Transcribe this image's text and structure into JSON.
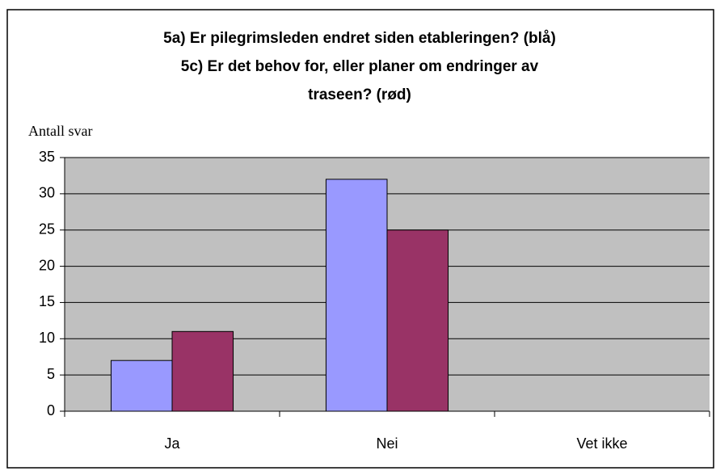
{
  "chart_data": {
    "type": "bar",
    "title": [
      "5a) Er pilegrimsleden endret siden etableringen? (blå)",
      "5c) Er det behov for, eller planer om endringer av",
      "traseen? (rød)"
    ],
    "y_label": "Antall svar",
    "categories": [
      "Ja",
      "Nei",
      "Vet ikke"
    ],
    "series": [
      {
        "color": "#9999ff",
        "values": [
          7,
          32,
          0
        ]
      },
      {
        "color": "#993366",
        "values": [
          11,
          25,
          0
        ]
      }
    ],
    "ylim": [
      0,
      35
    ],
    "yticks": [
      0,
      5,
      10,
      15,
      20,
      25,
      30,
      35
    ],
    "grid": true
  }
}
